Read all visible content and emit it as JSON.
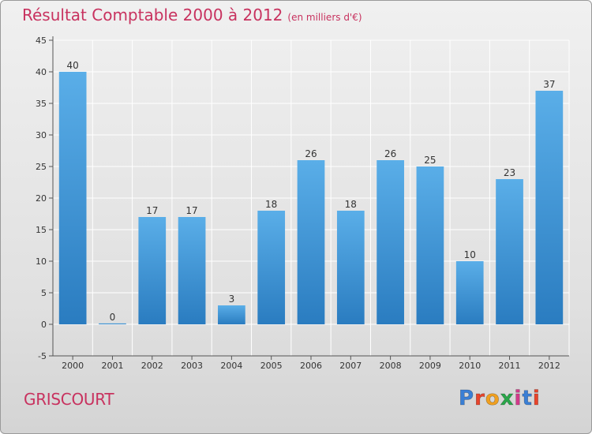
{
  "header": {
    "title": "Résultat Comptable 2000 à 2012",
    "subtitle": "(en milliers d'€)"
  },
  "footer": {
    "commune": "GRISCOURT",
    "brand": "Proxiti",
    "brand_colors": [
      "#3a7fd5",
      "#e8452c",
      "#f0a020",
      "#2aa64a",
      "#d23a8a",
      "#3a7fd5",
      "#e8452c"
    ]
  },
  "colors": {
    "title": "#c8325f",
    "bar_top": "#5aaee8",
    "bar_bottom": "#2a7cc0",
    "grid": "#ffffff",
    "axis": "#555555",
    "text": "#333333"
  },
  "chart_data": {
    "type": "bar",
    "title": "Résultat Comptable 2000 à 2012",
    "categories": [
      "2000",
      "2001",
      "2002",
      "2003",
      "2004",
      "2005",
      "2006",
      "2007",
      "2008",
      "2009",
      "2010",
      "2011",
      "2012"
    ],
    "values": [
      40,
      0,
      17,
      17,
      3,
      18,
      26,
      18,
      26,
      25,
      10,
      23,
      37
    ],
    "yticks": [
      -5,
      0,
      5,
      10,
      15,
      20,
      25,
      30,
      35,
      40,
      45
    ],
    "ylim": [
      -5,
      45
    ],
    "grid": true,
    "xlabel": "",
    "ylabel": ""
  }
}
